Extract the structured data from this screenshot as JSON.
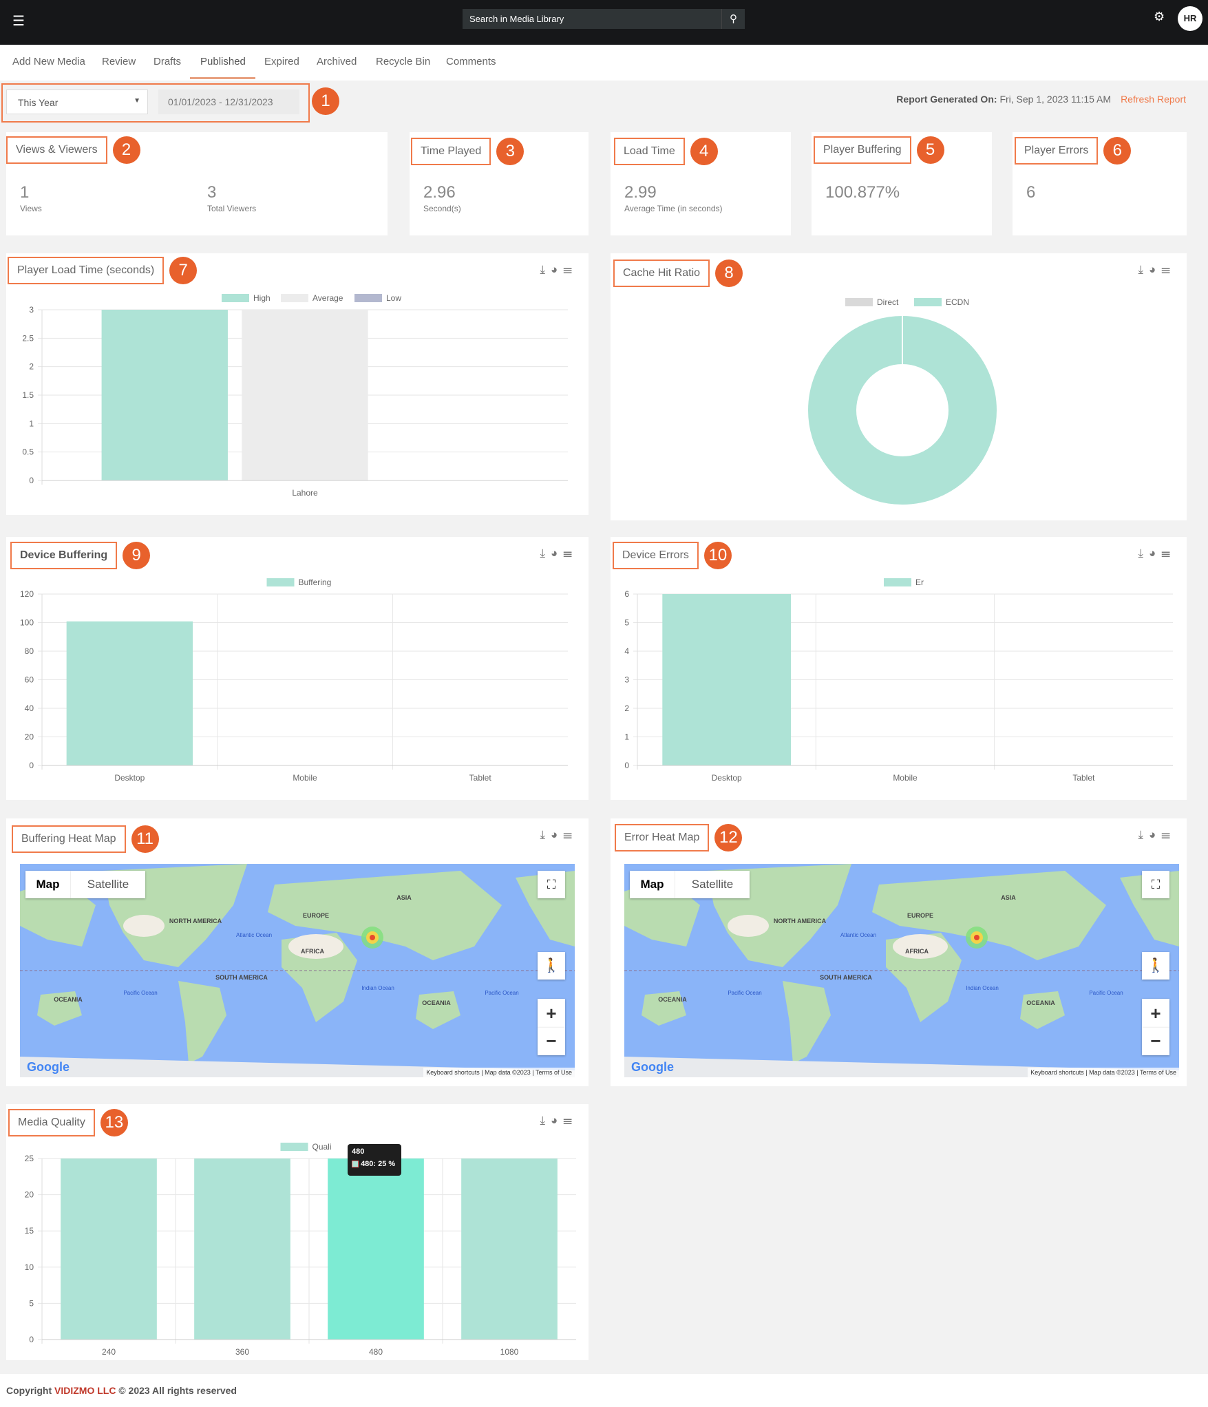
{
  "topbar": {
    "menu_icon": "hamburger-icon",
    "search_placeholder": "Search in Media Library",
    "search_icon": "search-icon",
    "settings_icon": "gear-icon",
    "avatar": "HR"
  },
  "tabs": [
    {
      "label": "Add New Media"
    },
    {
      "label": "Review"
    },
    {
      "label": "Drafts"
    },
    {
      "label": "Published",
      "active": true
    },
    {
      "label": "Expired"
    },
    {
      "label": "Archived"
    },
    {
      "label": "Recycle Bin"
    },
    {
      "label": "Comments"
    }
  ],
  "filter": {
    "period": "This Year",
    "date_range": "01/01/2023 - 12/31/2023",
    "report_label": "Report Generated On:",
    "report_time": "Fri, Sep 1, 2023 11:15 AM",
    "refresh": "Refresh Report"
  },
  "badges": [
    "1",
    "2",
    "3",
    "4",
    "5",
    "6",
    "7",
    "8",
    "9",
    "10",
    "11",
    "12",
    "13"
  ],
  "accent": "#e8612c",
  "kpis": {
    "views_viewers": {
      "title": "Views & Viewers",
      "views": "1",
      "views_label": "Views",
      "viewers": "3",
      "viewers_label": "Total Viewers"
    },
    "time_played": {
      "title": "Time Played",
      "value": "2.96",
      "label": "Second(s)"
    },
    "load_time": {
      "title": "Load Time",
      "value": "2.99",
      "label": "Average Time (in seconds)"
    },
    "player_buffering": {
      "title": "Player Buffering",
      "value": "100.877%"
    },
    "player_errors": {
      "title": "Player Errors",
      "value": "6"
    }
  },
  "panel_tools": [
    "download-icon",
    "pie-chart-icon",
    "list-icon"
  ],
  "chart_data": [
    {
      "id": "load",
      "title": "Player Load Time (seconds)",
      "type": "bar",
      "categories": [
        "Lahore"
      ],
      "series": [
        {
          "name": "High",
          "values": [
            3
          ],
          "color": "#aee3d6"
        },
        {
          "name": "Average",
          "values": [
            3
          ],
          "color": "#ececec"
        },
        {
          "name": "Low",
          "values": [
            0
          ],
          "color": "#b3b8cf"
        }
      ],
      "ylim": [
        0,
        3
      ],
      "ticks": [
        "0",
        "0.5",
        "1",
        "1.5",
        "2",
        "2.5",
        "3"
      ],
      "grid": true
    },
    {
      "id": "cache",
      "title": "Cache Hit Ratio",
      "type": "pie",
      "donut": true,
      "labels": [
        "Direct",
        "ECDN"
      ],
      "values": [
        0,
        100
      ],
      "colors": [
        "#d9d9d9",
        "#aee3d6"
      ]
    },
    {
      "id": "dbuf",
      "title": "Device Buffering",
      "type": "bar",
      "categories": [
        "Desktop",
        "Mobile",
        "Tablet"
      ],
      "series": [
        {
          "name": "Buffering",
          "values": [
            100.877,
            0,
            0
          ],
          "color": "#aee3d6"
        }
      ],
      "ylim": [
        0,
        120
      ],
      "ticks": [
        "0",
        "20",
        "40",
        "60",
        "80",
        "100",
        "120"
      ],
      "grid": true
    },
    {
      "id": "derr",
      "title": "Device Errors",
      "type": "bar",
      "categories": [
        "Desktop",
        "Mobile",
        "Tablet"
      ],
      "series": [
        {
          "name": "Er",
          "values": [
            6,
            0,
            0
          ],
          "color": "#aee3d6"
        }
      ],
      "ylim": [
        0,
        6
      ],
      "ticks": [
        "0",
        "1",
        "2",
        "3",
        "4",
        "5",
        "6"
      ],
      "grid": true
    },
    {
      "id": "mq",
      "title": "Media Quality",
      "type": "bar",
      "categories": [
        "240",
        "360",
        "480",
        "1080"
      ],
      "series": [
        {
          "name": "Quali",
          "values": [
            25,
            25,
            25,
            25
          ],
          "color": "#aee3d6"
        }
      ],
      "highlight": 2,
      "highlight_color": "#7debd3",
      "ylim": [
        0,
        25
      ],
      "ticks": [
        "0",
        "5",
        "10",
        "15",
        "20",
        "25"
      ],
      "grid": true,
      "tooltip": {
        "title": "480",
        "body": "480: 25 %"
      }
    }
  ],
  "maps": {
    "buffering": {
      "title": "Buffering Heat Map"
    },
    "error": {
      "title": "Error Heat Map"
    },
    "map_btn": "Map",
    "satellite_btn": "Satellite",
    "logo": "Google",
    "keyboard": "Keyboard shortcuts",
    "mapdata": "Map data ©2023",
    "terms": "Terms of Use",
    "labels": {
      "na": "NORTH AMERICA",
      "europe": "EUROPE",
      "asia": "ASIA",
      "africa": "AFRICA",
      "sa": "SOUTH AMERICA",
      "oceania": "OCEANIA",
      "atlantic": "Atlantic Ocean",
      "pacific": "Pacific Ocean",
      "indian": "Indian Ocean"
    },
    "heat_location": "Pakistan"
  },
  "footer": {
    "prefix": "Copyright",
    "brand": "VIDIZMO LLC",
    "suffix": "© 2023 All rights reserved"
  }
}
